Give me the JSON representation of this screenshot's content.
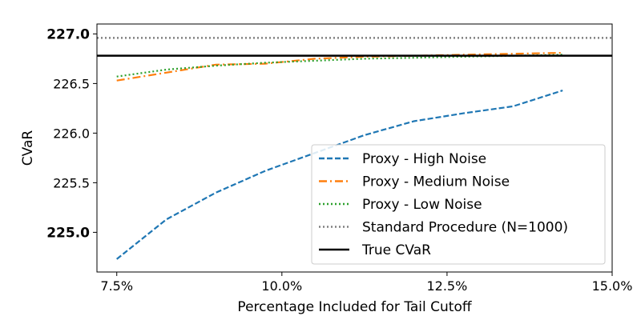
{
  "chart_data": {
    "type": "line",
    "xlabel": "Percentage Included for Tail Cutoff",
    "ylabel": "CVaR",
    "xlim": [
      7.2,
      15.0
    ],
    "ylim": [
      224.6,
      227.1
    ],
    "x_ticks": [
      7.5,
      10.0,
      12.5,
      15.0
    ],
    "x_tick_labels": [
      "7.5%",
      "10.0%",
      "12.5%",
      "15.0%"
    ],
    "y_ticks": [
      225.0,
      225.5,
      226.0,
      226.5,
      227.0
    ],
    "y_tick_labels": [
      "225.0",
      "225.5",
      "226.0",
      "226.5",
      "227.0"
    ],
    "bold_y_ticks": [
      "225.0",
      "227.0"
    ],
    "grid": false,
    "legend_position": "lower-right",
    "series": [
      {
        "name": "Proxy - High Noise",
        "color": "#1f77b4",
        "style": "dashed",
        "x": [
          7.5,
          8.25,
          9.0,
          9.75,
          10.5,
          11.25,
          12.0,
          12.75,
          13.5,
          14.25
        ],
        "y": [
          224.73,
          225.13,
          225.4,
          225.62,
          225.8,
          225.98,
          226.12,
          226.2,
          226.27,
          226.43
        ]
      },
      {
        "name": "Proxy - Medium Noise",
        "color": "#ff7f0e",
        "style": "dashdot",
        "x": [
          7.5,
          8.25,
          9.0,
          9.75,
          10.5,
          11.25,
          12.0,
          12.75,
          13.5,
          14.25
        ],
        "y": [
          226.53,
          226.61,
          226.69,
          226.7,
          226.75,
          226.77,
          226.78,
          226.79,
          226.8,
          226.81
        ]
      },
      {
        "name": "Proxy - Low Noise",
        "color": "#2ca02c",
        "style": "dotted",
        "x": [
          7.5,
          8.25,
          9.0,
          9.75,
          10.5,
          11.25,
          12.0,
          12.75,
          13.5,
          14.25
        ],
        "y": [
          226.57,
          226.64,
          226.68,
          226.71,
          226.73,
          226.75,
          226.76,
          226.77,
          226.78,
          226.79
        ]
      }
    ],
    "reference_lines": [
      {
        "name": "Standard Procedure (N=1000)",
        "y": 226.96,
        "color": "#808080",
        "style": "dotted"
      },
      {
        "name": "True CVaR",
        "y": 226.78,
        "color": "#000000",
        "style": "solid"
      }
    ]
  }
}
